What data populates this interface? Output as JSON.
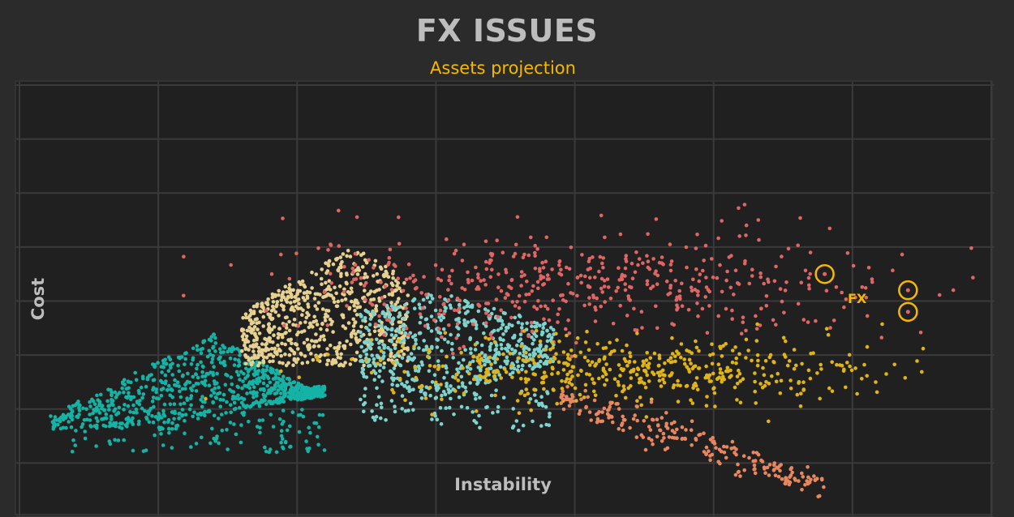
{
  "chart_data": {
    "type": "scatter",
    "title": "FX ISSUES",
    "subtitle": "Assets projection",
    "xlabel": "Instability",
    "ylabel": "Cost",
    "grid": true,
    "xlim": [
      0,
      7
    ],
    "ylim": [
      0,
      8
    ],
    "annotations": [
      {
        "text": "FX",
        "x": 6.1,
        "y": 3.9
      }
    ],
    "highlighted_points": [
      {
        "x": 5.8,
        "y": 4.5
      },
      {
        "x": 6.4,
        "y": 4.2
      },
      {
        "x": 6.4,
        "y": 3.8
      }
    ],
    "clusters": [
      {
        "color": "#14b3a6",
        "center": [
          1.2,
          2.5
        ],
        "spread": [
          0.9,
          0.6
        ],
        "count": 900,
        "shape": "triangle-left"
      },
      {
        "color": "#e6d190",
        "center": [
          2.0,
          3.8
        ],
        "spread": [
          0.6,
          0.6
        ],
        "count": 650,
        "shape": "triangle-up"
      },
      {
        "color": "#7fd3cd",
        "center": [
          3.0,
          3.2
        ],
        "spread": [
          0.6,
          0.6
        ],
        "count": 650,
        "shape": "diamond"
      },
      {
        "color": "#e06565",
        "center": [
          4.1,
          4.3
        ],
        "spread": [
          1.1,
          0.5
        ],
        "count": 500,
        "shape": "band"
      },
      {
        "color": "#e0b416",
        "center": [
          4.4,
          2.7
        ],
        "spread": [
          0.9,
          0.3
        ],
        "count": 500,
        "shape": "band"
      },
      {
        "color": "#e8875e",
        "center": [
          4.9,
          1.1
        ],
        "spread": [
          0.7,
          0.25
        ],
        "count": 220,
        "shape": "diagonal"
      }
    ],
    "colors": {
      "background": "#2b2b2b",
      "plot_background": "#202020",
      "grid": "#3a3a3a",
      "accent": "#f5b800"
    }
  }
}
